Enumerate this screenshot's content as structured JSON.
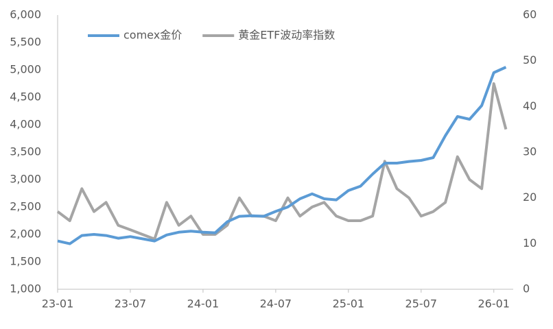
{
  "chart_data": {
    "type": "line",
    "categories": [
      "23-01",
      null,
      null,
      null,
      null,
      null,
      "23-07",
      null,
      null,
      null,
      null,
      null,
      "24-01",
      null,
      null,
      null,
      null,
      null,
      "24-07",
      null,
      null,
      null,
      null,
      null,
      "25-01",
      null,
      null,
      null,
      null,
      null,
      "25-07",
      null,
      null,
      null,
      null,
      null,
      "26-01",
      null
    ],
    "series": [
      {
        "name": "comex金价",
        "color": "#5b9bd5",
        "axis": "y",
        "values": [
          1880,
          1830,
          1980,
          2000,
          1980,
          1930,
          1960,
          1920,
          1880,
          1990,
          2040,
          2060,
          2040,
          2030,
          2230,
          2330,
          2340,
          2330,
          2420,
          2500,
          2650,
          2740,
          2650,
          2630,
          2800,
          2880,
          3100,
          3300,
          3300,
          3330,
          3350,
          3400,
          3800,
          4150,
          4100,
          4350,
          4950,
          5050
        ]
      },
      {
        "name": "黄金ETF波动率指数",
        "color": "#a5a5a5",
        "axis": "y2",
        "values": [
          17,
          15,
          22,
          17,
          19,
          14,
          13,
          12,
          11,
          19,
          14,
          16,
          12,
          12,
          14,
          20,
          16,
          16,
          15,
          20,
          16,
          18,
          19,
          16,
          15,
          15,
          16,
          28,
          22,
          20,
          16,
          17,
          19,
          29,
          24,
          22,
          45,
          35
        ]
      }
    ],
    "ylim": [
      1000,
      6000
    ],
    "yticks": [
      {
        "value": 1000,
        "label": "1,000"
      },
      {
        "value": 1500,
        "label": "1,500"
      },
      {
        "value": 2000,
        "label": "2,000"
      },
      {
        "value": 2500,
        "label": "2,500"
      },
      {
        "value": 3000,
        "label": "3,000"
      },
      {
        "value": 3500,
        "label": "3,500"
      },
      {
        "value": 4000,
        "label": "4,000"
      },
      {
        "value": 4500,
        "label": "4,500"
      },
      {
        "value": 5000,
        "label": "5,000"
      },
      {
        "value": 5500,
        "label": "5,500"
      },
      {
        "value": 6000,
        "label": "6,000"
      }
    ],
    "y2lim": [
      0,
      60
    ],
    "y2ticks": [
      0,
      10,
      20,
      30,
      40,
      50,
      60
    ],
    "grid": false,
    "legend": "top"
  }
}
